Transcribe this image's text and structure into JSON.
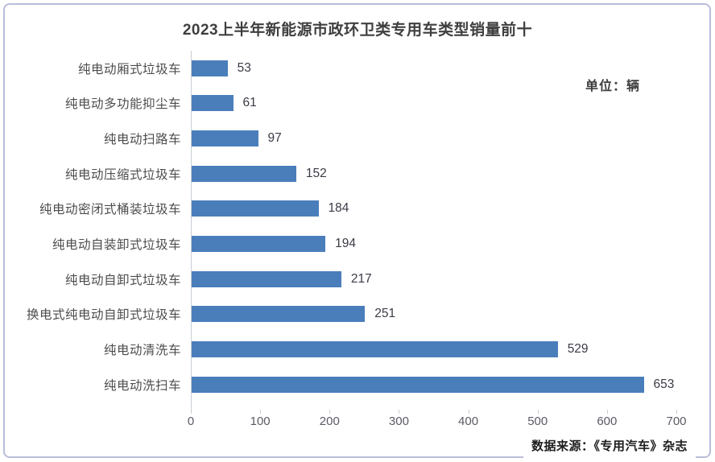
{
  "page": {
    "background": "#ffffff",
    "frame_border_color": "#b9bdd8"
  },
  "chart_data": {
    "type": "bar",
    "orientation": "horizontal",
    "title": "2023上半年新能源市政环卫类专用车类型销量前十",
    "unit_label": "单位：辆",
    "categories": [
      "纯电动厢式垃圾车",
      "纯电动多功能抑尘车",
      "纯电动扫路车",
      "纯电动压缩式垃圾车",
      "纯电动密闭式桶装垃圾车",
      "纯电动自装卸式垃圾车",
      "纯电动自卸式垃圾车",
      "换电式纯电动自卸式垃圾车",
      "纯电动清洗车",
      "纯电动洗扫车"
    ],
    "values": [
      53,
      61,
      97,
      152,
      184,
      194,
      217,
      251,
      529,
      653
    ],
    "xlim": [
      0,
      700
    ],
    "x_ticks": [
      0,
      100,
      200,
      300,
      400,
      500,
      600,
      700
    ],
    "bar_color": "#4a7ebb",
    "grid": false,
    "legend": null,
    "source_note": "数据来源：《专用汽车》杂志"
  }
}
